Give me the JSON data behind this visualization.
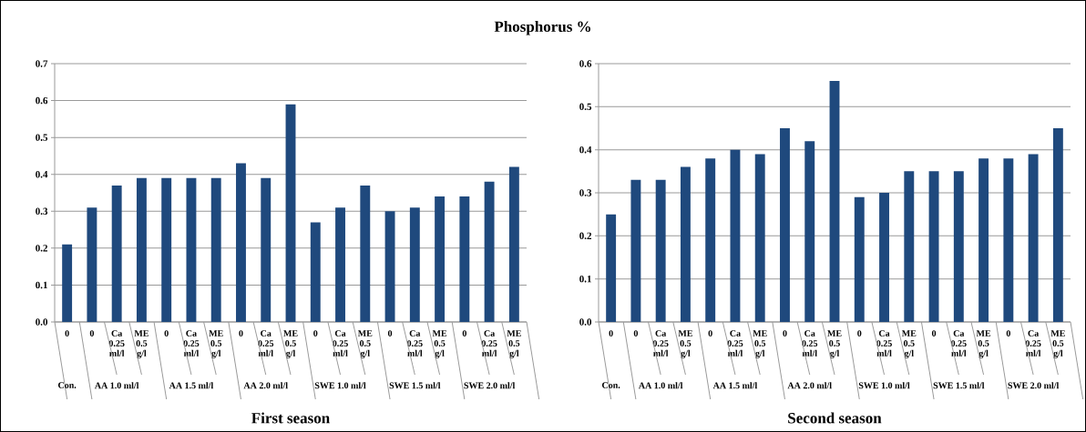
{
  "chart_data": [
    {
      "type": "bar",
      "title": "Phosphorus %",
      "xlabel": "First season",
      "categories": [
        "0",
        "0",
        "Ca 0.25 ml/l",
        "ME 0.5 g/l",
        "0",
        "Ca 0.25 ml/l",
        "ME 0.5 g/l",
        "0",
        "Ca 0.25 ml/l",
        "ME 0.5 g/l",
        "0",
        "Ca 0.25 ml/l",
        "ME 0.5 g/l",
        "0",
        "Ca 0.25 ml/l",
        "ME 0.5 g/l",
        "0",
        "Ca 0.25 ml/l",
        "ME 0.5 g/l"
      ],
      "values": [
        0.21,
        0.31,
        0.37,
        0.39,
        0.39,
        0.39,
        0.39,
        0.43,
        0.39,
        0.59,
        0.27,
        0.31,
        0.37,
        0.3,
        0.31,
        0.34,
        0.34,
        0.38,
        0.42
      ],
      "color": "#1f497d",
      "ylim": [
        0,
        0.7
      ],
      "yticks": [
        {
          "value": 0,
          "label": "0.0"
        },
        {
          "value": 0.1,
          "label": "0.1"
        },
        {
          "value": 0.2,
          "label": "0.2"
        },
        {
          "value": 0.3,
          "label": "0.3"
        },
        {
          "value": 0.4,
          "label": "0.4"
        },
        {
          "value": 0.5,
          "label": "0.5"
        },
        {
          "value": 0.6,
          "label": "0.6"
        },
        {
          "value": 0.7,
          "label": "0.7"
        }
      ],
      "grid": "y",
      "annotations": [
        "Con.",
        "AA 1.0 ml/l",
        "AA 1.5 ml/l",
        "AA 2.0 ml/l",
        "SWE 1.0 ml/l",
        "SWE 1.5 ml/l",
        "SWE 2.0 ml/l"
      ]
    },
    {
      "type": "bar",
      "xlabel": "Second season",
      "categories": [
        "0",
        "0",
        "Ca 0.25 ml/l",
        "ME 0.5 g/l",
        "0",
        "Ca 0.25 ml/l",
        "ME 0.5 g/l",
        "0",
        "Ca 0.25 ml/l",
        "ME 0.5 g/l",
        "0",
        "Ca 0.25 ml/l",
        "ME 0.5 g/l",
        "0",
        "Ca 0.25 ml/l",
        "ME 0.5 g/l",
        "0",
        "Ca 0.25 ml/l",
        "ME 0.5 g/l"
      ],
      "values": [
        0.25,
        0.33,
        0.33,
        0.36,
        0.38,
        0.4,
        0.39,
        0.45,
        0.42,
        0.56,
        0.29,
        0.3,
        0.35,
        0.35,
        0.35,
        0.38,
        0.38,
        0.39,
        0.45
      ],
      "color": "#1f497d",
      "ylim": [
        0,
        0.6
      ],
      "yticks": [
        {
          "value": 0,
          "label": "0.0"
        },
        {
          "value": 0.1,
          "label": "0.1"
        },
        {
          "value": 0.2,
          "label": "0.2"
        },
        {
          "value": 0.3,
          "label": "0.3"
        },
        {
          "value": 0.4,
          "label": "0.4"
        },
        {
          "value": 0.5,
          "label": "0.5"
        },
        {
          "value": 0.6,
          "label": "0.6"
        }
      ],
      "grid": "y",
      "annotations": [
        "Con.",
        "AA 1.0 ml/l",
        "AA 1.5 ml/l",
        "AA 2.0 ml/l",
        "SWE 1.0 ml/l",
        "SWE 1.5 ml/l",
        "SWE 2.0 ml/l"
      ]
    }
  ]
}
